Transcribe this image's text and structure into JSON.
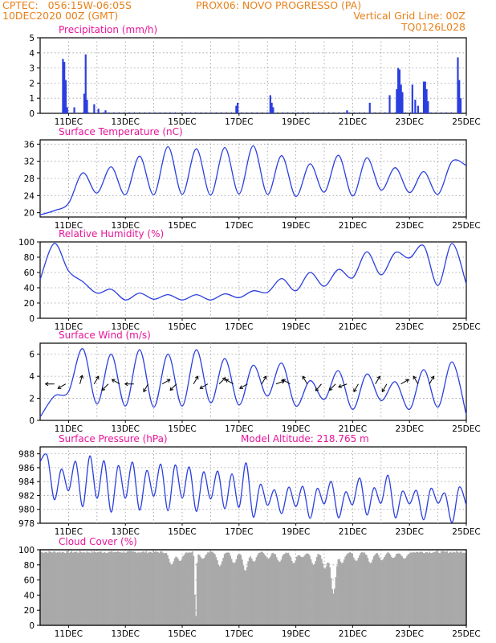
{
  "header": {
    "line1_left": "CPTEC:   056:15W-06:05S",
    "line1_mid": "PROX06: NOVO PROGRESSO (PA)",
    "line2_left": "10DEC2020 00Z (GMT)",
    "line2_right": "Vertical Grid Line: 00Z",
    "line3_right": "TQ0126L028"
  },
  "colors": {
    "header": "#e8801a",
    "title": "#e8149a",
    "series": "#2b3fe0",
    "cloud": "#a9a9a9",
    "grid": "#9a9a9a"
  },
  "x_ticks": [
    "11DEC",
    "13DEC",
    "15DEC",
    "17DEC",
    "19DEC",
    "21DEC",
    "23DEC",
    "25DEC"
  ],
  "x_range_days": [
    10,
    25
  ],
  "chart_data": [
    {
      "type": "bar",
      "title": "Precipitation (mm/h)",
      "ylim": [
        0,
        5
      ],
      "yticks": [
        0,
        1,
        2,
        3,
        4,
        5
      ],
      "events": [
        {
          "t": 10.8,
          "v": 3.6
        },
        {
          "t": 10.85,
          "v": 3.4
        },
        {
          "t": 10.9,
          "v": 2.2
        },
        {
          "t": 10.95,
          "v": 0.4
        },
        {
          "t": 11.2,
          "v": 0.4
        },
        {
          "t": 11.55,
          "v": 1.3
        },
        {
          "t": 11.6,
          "v": 3.9
        },
        {
          "t": 11.65,
          "v": 0.9
        },
        {
          "t": 11.9,
          "v": 0.6
        },
        {
          "t": 12.05,
          "v": 0.3
        },
        {
          "t": 12.3,
          "v": 0.2
        },
        {
          "t": 16.9,
          "v": 0.5
        },
        {
          "t": 16.95,
          "v": 0.7
        },
        {
          "t": 18.1,
          "v": 1.2
        },
        {
          "t": 18.15,
          "v": 0.7
        },
        {
          "t": 18.2,
          "v": 0.4
        },
        {
          "t": 20.8,
          "v": 0.2
        },
        {
          "t": 21.6,
          "v": 0.7
        },
        {
          "t": 22.3,
          "v": 1.2
        },
        {
          "t": 22.55,
          "v": 1.6
        },
        {
          "t": 22.6,
          "v": 3.0
        },
        {
          "t": 22.65,
          "v": 2.9
        },
        {
          "t": 22.7,
          "v": 1.9
        },
        {
          "t": 22.75,
          "v": 1.4
        },
        {
          "t": 23.1,
          "v": 1.9
        },
        {
          "t": 23.2,
          "v": 0.9
        },
        {
          "t": 23.3,
          "v": 0.5
        },
        {
          "t": 23.5,
          "v": 2.1
        },
        {
          "t": 23.55,
          "v": 2.1
        },
        {
          "t": 23.6,
          "v": 1.6
        },
        {
          "t": 23.65,
          "v": 0.8
        },
        {
          "t": 24.7,
          "v": 3.7
        },
        {
          "t": 24.75,
          "v": 2.2
        },
        {
          "t": 24.8,
          "v": 1.0
        }
      ]
    },
    {
      "type": "line",
      "title": "Surface Temperature (nC)",
      "ylim": [
        19,
        37
      ],
      "yticks": [
        20,
        24,
        28,
        32,
        36
      ],
      "peaks": [
        20.5,
        29.3,
        30.7,
        33.2,
        35.4,
        34.9,
        35.2,
        35.6,
        33.3,
        31.4,
        33.4,
        32.8,
        30.5,
        29.6,
        32.0
      ],
      "troughs": [
        19.5,
        22.2,
        24.6,
        24.2,
        24.2,
        24.3,
        24.1,
        24.4,
        24.3,
        23.8,
        24.8,
        23.9,
        25.3,
        24.7,
        24.3,
        31.0
      ]
    },
    {
      "type": "line",
      "title": "Relative Humidity (%)",
      "ylim": [
        0,
        100
      ],
      "yticks": [
        0,
        20,
        40,
        60,
        80,
        100
      ],
      "peaks": [
        98,
        48,
        38,
        33,
        31,
        31,
        32,
        36,
        52,
        60,
        64,
        87,
        86,
        95,
        98
      ],
      "troughs": [
        51,
        62,
        33,
        24,
        25,
        24,
        24,
        27,
        34,
        36,
        42,
        53,
        57,
        79,
        43,
        45
      ]
    },
    {
      "type": "line",
      "title": "Surface Wind (m/s)",
      "ylim": [
        0,
        7
      ],
      "yticks": [
        0,
        2,
        4,
        6
      ],
      "peaks": [
        2.2,
        6.5,
        6.0,
        6.4,
        6.0,
        6.4,
        5.6,
        5.0,
        5.2,
        3.6,
        4.5,
        4.2,
        3.5,
        4.6,
        5.3
      ],
      "troughs": [
        0.3,
        2.6,
        1.5,
        1.3,
        1.2,
        1.3,
        1.6,
        1.4,
        2.2,
        1.3,
        1.9,
        1.0,
        1.8,
        1.0,
        1.2,
        0.5
      ],
      "arrow_days": [
        10.5,
        10.9,
        11.4,
        11.9,
        12.4,
        12.8,
        13.3,
        13.8,
        14.3,
        14.8,
        15.4,
        15.9,
        16.3,
        16.8,
        17.3,
        17.8,
        18.3,
        18.8,
        19.4,
        19.9,
        20.4,
        20.8,
        21.2,
        21.8,
        22.2,
        22.7,
        23.3,
        23.7
      ],
      "arrow_dirs": [
        180,
        210,
        75,
        60,
        225,
        150,
        180,
        240,
        30,
        225,
        60,
        210,
        45,
        150,
        210,
        60,
        20,
        150,
        120,
        230,
        225,
        200,
        240,
        60,
        240,
        30,
        120,
        60
      ]
    },
    {
      "type": "line",
      "title": "Surface Pressure (hPa)",
      "annotation": "Model Altitude: 218.765  m",
      "ylim": [
        978,
        989
      ],
      "yticks": [
        978,
        980,
        982,
        984,
        986,
        988
      ],
      "peaks": [
        987.7,
        985.8,
        986.9,
        987.7,
        987.0,
        986.3,
        986.8,
        985.6,
        986.5,
        986.4,
        986.1,
        985.4,
        985.5,
        985.1,
        986.7,
        983.6,
        982.8,
        983.2,
        983.3,
        983.0,
        984.0,
        982.5,
        984.5,
        983.1,
        984.9,
        982.6,
        982.7,
        983.0,
        982.3,
        983.2
      ],
      "troughs": [
        986.9,
        981.4,
        982.7,
        980.4,
        981.6,
        979.6,
        981.6,
        979.9,
        981.9,
        979.8,
        981.6,
        979.7,
        981.5,
        980.1,
        980.3,
        978.9,
        980.6,
        979.4,
        980.4,
        978.7,
        980.8,
        978.8,
        980.7,
        979.2,
        980.9,
        978.8,
        980.8,
        978.5,
        980.9,
        978.1,
        980.6
      ]
    },
    {
      "type": "area",
      "title": "Cloud Cover (%)",
      "ylim": [
        0,
        100
      ],
      "yticks": [
        0,
        20,
        40,
        60,
        80,
        100
      ],
      "base_level": 97,
      "dips": [
        {
          "t": 14.6,
          "v": 80
        },
        {
          "t": 14.9,
          "v": 85
        },
        {
          "t": 15.45,
          "v": 2
        },
        {
          "t": 15.7,
          "v": 88
        },
        {
          "t": 16.3,
          "v": 78
        },
        {
          "t": 16.8,
          "v": 82
        },
        {
          "t": 17.2,
          "v": 72
        },
        {
          "t": 17.5,
          "v": 84
        },
        {
          "t": 18.0,
          "v": 88
        },
        {
          "t": 18.4,
          "v": 84
        },
        {
          "t": 18.9,
          "v": 82
        },
        {
          "t": 19.2,
          "v": 90
        },
        {
          "t": 19.6,
          "v": 80
        },
        {
          "t": 20.0,
          "v": 75
        },
        {
          "t": 20.3,
          "v": 42
        },
        {
          "t": 20.6,
          "v": 82
        },
        {
          "t": 21.1,
          "v": 85
        },
        {
          "t": 21.6,
          "v": 82
        },
        {
          "t": 22.0,
          "v": 86
        },
        {
          "t": 22.4,
          "v": 89
        },
        {
          "t": 22.8,
          "v": 88
        }
      ]
    }
  ]
}
